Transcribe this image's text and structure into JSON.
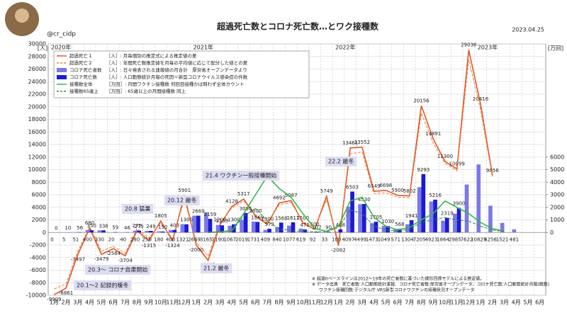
{
  "handle": "@cr_cidp",
  "date": "2023.04.25",
  "chart_data": {
    "type": "combo",
    "title": "超過死亡数とコロナ死亡数…とワク接種数",
    "y_unit": "[人]",
    "y2_unit": "[万回]",
    "categories": [
      "1月",
      "2月",
      "3月",
      "4月",
      "5月",
      "6月",
      "7月",
      "8月",
      "9月",
      "10月",
      "11月",
      "12月",
      "1月",
      "2月",
      "3月",
      "4月",
      "5月",
      "6月",
      "7月",
      "8月",
      "9月",
      "10月",
      "11月",
      "12月",
      "1月",
      "2月",
      "3月",
      "4月",
      "5月",
      "6月",
      "7月",
      "8月",
      "9月",
      "10月",
      "11月",
      "12月",
      "1月",
      "2月",
      "3月",
      "4月",
      "5月",
      "6月"
    ],
    "years": [
      "2020年",
      "2021年",
      "2022年",
      "2023年"
    ],
    "ylim": [
      -10000,
      30000
    ],
    "yticks": [
      -10000,
      -8000,
      -6000,
      -4000,
      -2000,
      0,
      2000,
      4000,
      6000,
      8000,
      10000,
      12000,
      14000,
      16000,
      18000,
      20000,
      22000,
      24000,
      26000,
      28000,
      30000
    ],
    "y2lim": [
      -5000,
      15000
    ],
    "y2ticks": [
      0,
      1000,
      2000,
      3000,
      4000,
      5000,
      6000
    ],
    "grid": true,
    "series": [
      {
        "name": "超過死亡１",
        "desc": "［人］: 月毎個別の推定式による推定値の差",
        "kind": "line",
        "color": "#e0552a",
        "dash": false,
        "values": [
          -9909,
          -8861,
          -3497,
          680,
          -3479,
          -2584,
          -3704,
          275,
          -1315,
          1805,
          -1324,
          5901,
          -2000,
          -4440,
          1200,
          4128,
          5317,
          2600,
          1300,
          4692,
          5087,
          1500,
          500,
          5749,
          -2082,
          13461,
          13552,
          6549,
          6698,
          5900,
          5802,
          20156,
          14891,
          11300,
          10099,
          29036,
          20416,
          9056,
          null,
          null,
          null,
          null
        ]
      },
      {
        "name": "超過死亡２",
        "desc": "［人］: 年間死亡数推定値を月毎の平均値に応じて配分した値との差",
        "kind": "line",
        "color": "#e8843a",
        "dash": true,
        "values": [
          -9000,
          -8200,
          -3000,
          900,
          -3000,
          -2200,
          -3300,
          600,
          -900,
          1500,
          -1000,
          5300,
          -1500,
          -3800,
          1500,
          3900,
          5000,
          2800,
          1600,
          4400,
          4800,
          1700,
          800,
          5200,
          -1500,
          12500,
          12800,
          6200,
          6300,
          5600,
          5500,
          19000,
          14200,
          11000,
          9800,
          27500,
          19500,
          8800,
          null,
          null,
          null,
          null
        ]
      },
      {
        "name": "コロナ死亡者数",
        "desc": "［人］: 日々発表される速報値の月合計　厚労省オープンデータより",
        "kind": "bar",
        "color": "#7b79e6",
        "values": [
          0,
          5,
          51,
          400,
          330,
          20,
          40,
          280,
          250,
          180,
          400,
          1321,
          2669,
          3165,
          1190,
          1067,
          2019,
          1731,
          409,
          840,
          1077,
          619,
          92,
          33,
          100,
          4097,
          4499,
          1473,
          1049,
          571,
          1304,
          7205,
          4923,
          1864,
          2985,
          7622,
          10825,
          4256,
          1521,
          481,
          null,
          null
        ]
      },
      {
        "name": "コロナ死亡数",
        "desc": "［人］: 人口動態統計月報の死因＝新型コロナウイルス感染症の件数",
        "kind": "bar",
        "color": "#1a1ad6",
        "values": [
          0,
          10,
          56,
          350,
          338,
          59,
          46,
          275,
          249,
          150,
          403,
          1300,
          2669,
          2159,
          1139,
          1300,
          3095,
          1669,
          579,
          1568,
          1617,
          471,
          107,
          90,
          488,
          6503,
          4530,
          1705,
          1030,
          568,
          1941,
          9293,
          5216,
          2319,
          3900,
          null,
          null,
          null,
          null,
          null,
          null,
          null
        ]
      },
      {
        "name": "接種数全体",
        "desc": "［万回］: 月間ワクチン接種数 何回目接種かは問わず全体カウント",
        "kind": "line",
        "axis": "y2",
        "color": "#3cb44b",
        "dash": false,
        "values": [
          null,
          null,
          null,
          null,
          null,
          null,
          null,
          null,
          null,
          null,
          null,
          null,
          null,
          5,
          50,
          150,
          1500,
          3000,
          4500,
          3500,
          2800,
          1500,
          300,
          100,
          500,
          2500,
          2800,
          1200,
          500,
          200,
          400,
          1000,
          1500,
          2500,
          2000,
          1500,
          800,
          300,
          100,
          null,
          null,
          null
        ]
      },
      {
        "name": "接種数65歳上",
        "desc": "［万回］: 65歳以上の月間接種数 同上",
        "kind": "line",
        "axis": "y2",
        "color": "#2e8b3e",
        "dash": true,
        "values": [
          null,
          null,
          null,
          null,
          null,
          null,
          null,
          null,
          null,
          null,
          null,
          null,
          null,
          1,
          30,
          120,
          1300,
          1900,
          900,
          300,
          150,
          80,
          50,
          60,
          400,
          1800,
          1500,
          500,
          200,
          100,
          250,
          800,
          1000,
          1200,
          1000,
          900,
          500,
          200,
          60,
          null,
          null,
          null
        ]
      }
    ],
    "annotations": [
      "20.1～2 記録的暖冬",
      "20.3～ コロナ自粛開始",
      "20.8 猛暑",
      "20.12 厳冬",
      "21.2 厳冬",
      "21.4 ワクチン一般接種開始",
      "22.2 厳冬"
    ],
    "notes": [
      "※ 超過0ベースラインは2012～19年の死亡者数に基づいた線形回帰モデルによる推定値。",
      "※ データ出典　死亡者数:人口動態統計速報、コロナ死亡者数:厚労省オープンデータ、コロナ死亡数:人口動態統計月報(概数)",
      "ワクチン接種回数:デジタル庁 VRS新型コロナワクチンの接種状況オープンデータ"
    ]
  }
}
